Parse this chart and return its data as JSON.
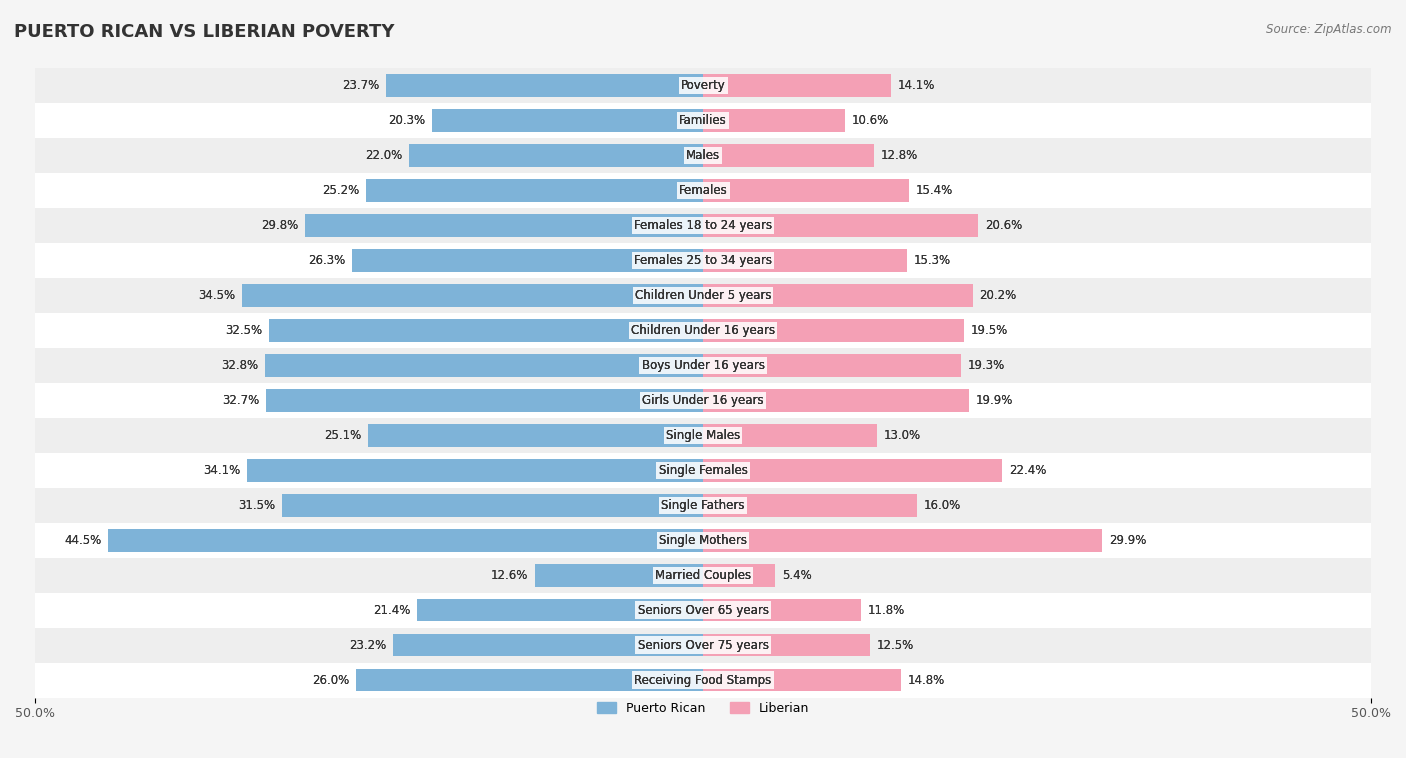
{
  "title": "PUERTO RICAN VS LIBERIAN POVERTY",
  "source": "Source: ZipAtlas.com",
  "categories": [
    "Poverty",
    "Families",
    "Males",
    "Females",
    "Females 18 to 24 years",
    "Females 25 to 34 years",
    "Children Under 5 years",
    "Children Under 16 years",
    "Boys Under 16 years",
    "Girls Under 16 years",
    "Single Males",
    "Single Females",
    "Single Fathers",
    "Single Mothers",
    "Married Couples",
    "Seniors Over 65 years",
    "Seniors Over 75 years",
    "Receiving Food Stamps"
  ],
  "puerto_rican": [
    23.7,
    20.3,
    22.0,
    25.2,
    29.8,
    26.3,
    34.5,
    32.5,
    32.8,
    32.7,
    25.1,
    34.1,
    31.5,
    44.5,
    12.6,
    21.4,
    23.2,
    26.0
  ],
  "liberian": [
    14.1,
    10.6,
    12.8,
    15.4,
    20.6,
    15.3,
    20.2,
    19.5,
    19.3,
    19.9,
    13.0,
    22.4,
    16.0,
    29.9,
    5.4,
    11.8,
    12.5,
    14.8
  ],
  "puerto_rican_color": "#7eb3d8",
  "liberian_color": "#f4a0b5",
  "background_color": "#f5f5f5",
  "bar_background": "#ffffff",
  "max_value": 50.0,
  "legend_pr": "Puerto Rican",
  "legend_lib": "Liberian"
}
